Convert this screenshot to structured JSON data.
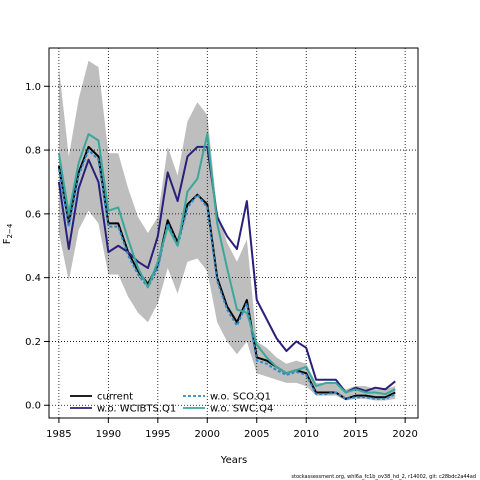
{
  "chart_data": {
    "type": "line",
    "xlabel": "Years",
    "ylabel": "F",
    "ylabel_sub": "2−4",
    "xlim": [
      1984,
      2021.3
    ],
    "ylim": [
      -0.04,
      1.12
    ],
    "xticks": [
      1985,
      1990,
      1995,
      2000,
      2005,
      2010,
      2015,
      2020
    ],
    "yticks": [
      0.0,
      0.2,
      0.4,
      0.6,
      0.8,
      1.0
    ],
    "ytick_labels": [
      "0.0",
      "0.2",
      "0.4",
      "0.6",
      "0.8",
      "1.0"
    ],
    "grid": "dotted",
    "legend_position": "bottom-left",
    "x": [
      1985,
      1986,
      1987,
      1988,
      1989,
      1990,
      1991,
      1992,
      1993,
      1994,
      1995,
      1996,
      1997,
      1998,
      1999,
      2000,
      2001,
      2002,
      2003,
      2004,
      2005,
      2006,
      2007,
      2008,
      2009,
      2010,
      2011,
      2012,
      2013,
      2014,
      2015,
      2016,
      2017,
      2018,
      2019
    ],
    "band": {
      "color": "#bebebe",
      "upper": [
        1.06,
        0.78,
        0.96,
        1.08,
        1.06,
        0.79,
        0.79,
        0.68,
        0.59,
        0.54,
        0.59,
        0.81,
        0.72,
        0.89,
        0.95,
        0.91,
        0.61,
        0.51,
        0.45,
        0.52,
        0.2,
        0.18,
        0.15,
        0.13,
        0.14,
        0.13,
        0.07,
        0.07,
        0.07,
        0.05,
        0.06,
        0.06,
        0.05,
        0.05,
        0.06
      ],
      "lower": [
        0.54,
        0.39,
        0.55,
        0.61,
        0.57,
        0.41,
        0.41,
        0.34,
        0.29,
        0.26,
        0.32,
        0.43,
        0.35,
        0.45,
        0.46,
        0.42,
        0.26,
        0.2,
        0.16,
        0.2,
        0.1,
        0.09,
        0.08,
        0.07,
        0.07,
        0.06,
        0.03,
        0.03,
        0.03,
        0.015,
        0.02,
        0.02,
        0.015,
        0.015,
        0.02
      ]
    },
    "series": [
      {
        "name": "current",
        "color": "#000000",
        "dash": "",
        "values": [
          0.75,
          0.57,
          0.73,
          0.81,
          0.78,
          0.57,
          0.57,
          0.48,
          0.42,
          0.38,
          0.44,
          0.58,
          0.51,
          0.63,
          0.66,
          0.63,
          0.4,
          0.31,
          0.26,
          0.33,
          0.15,
          0.14,
          0.12,
          0.1,
          0.11,
          0.1,
          0.04,
          0.04,
          0.04,
          0.02,
          0.03,
          0.03,
          0.025,
          0.025,
          0.04
        ]
      },
      {
        "name": "w.o. WCIBTS.Q1",
        "color": "#2a1f7a",
        "dash": "",
        "values": [
          0.7,
          0.49,
          0.68,
          0.77,
          0.7,
          0.48,
          0.5,
          0.48,
          0.45,
          0.43,
          0.53,
          0.73,
          0.64,
          0.78,
          0.81,
          0.81,
          0.59,
          0.53,
          0.49,
          0.64,
          0.33,
          0.27,
          0.21,
          0.17,
          0.2,
          0.18,
          0.08,
          0.08,
          0.08,
          0.04,
          0.055,
          0.045,
          0.055,
          0.05,
          0.075
        ]
      },
      {
        "name": "w.o. SCO.Q1",
        "color": "#2e87c8",
        "dash": "3,2",
        "values": [
          0.74,
          0.56,
          0.72,
          0.8,
          0.77,
          0.56,
          0.56,
          0.47,
          0.41,
          0.37,
          0.43,
          0.57,
          0.5,
          0.62,
          0.66,
          0.62,
          0.39,
          0.3,
          0.25,
          0.32,
          0.14,
          0.13,
          0.11,
          0.095,
          0.105,
          0.095,
          0.035,
          0.035,
          0.04,
          0.02,
          0.025,
          0.025,
          0.02,
          0.02,
          0.035
        ]
      },
      {
        "name": "w.o. SWC.Q4",
        "color": "#3ba79a",
        "dash": "",
        "values": [
          0.79,
          0.6,
          0.76,
          0.85,
          0.83,
          0.61,
          0.62,
          0.52,
          0.43,
          0.37,
          0.45,
          0.56,
          0.5,
          0.67,
          0.71,
          0.85,
          0.57,
          0.43,
          0.3,
          0.29,
          0.19,
          0.15,
          0.12,
          0.1,
          0.11,
          0.12,
          0.06,
          0.07,
          0.07,
          0.04,
          0.05,
          0.04,
          0.04,
          0.035,
          0.05
        ]
      }
    ]
  },
  "legend": {
    "col1": [
      "current",
      "w.o. WCIBTS.Q1"
    ],
    "col2": [
      "w.o. SCO.Q1",
      "w.o. SWC.Q4"
    ]
  },
  "footer": "stockassessment.org, whl6a_fc1b_ov38_hd_2, r14002, git: c28bdc2a44ad"
}
